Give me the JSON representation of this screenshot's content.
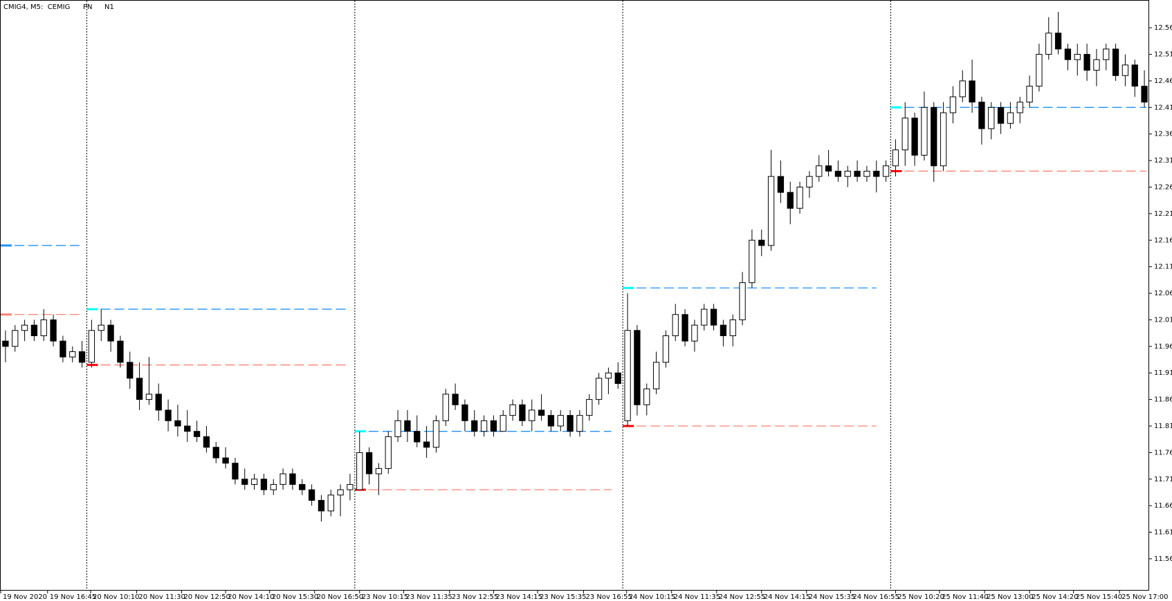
{
  "chart_data": {
    "type": "candlestick",
    "title": "CMIG4, M5:  CEMIG",
    "labels": [
      "PN",
      "N1"
    ],
    "up_color": "#ffffff",
    "down_color": "#000000",
    "outline_color": "#000000",
    "xlim": [
      0,
      120
    ],
    "ylim": [
      11.5,
      12.611
    ],
    "yticks": [
      11.56,
      11.61,
      11.66,
      11.71,
      11.76,
      11.81,
      11.86,
      11.91,
      11.96,
      12.01,
      12.06,
      12.11,
      12.16,
      12.21,
      12.26,
      12.31,
      12.36,
      12.41,
      12.46,
      12.51,
      12.56
    ],
    "xticks": [
      {
        "value": 0,
        "label": "19 Nov 2020"
      },
      {
        "value": 4.9,
        "label": "19 Nov 16:45"
      },
      {
        "value": 9.4,
        "label": "20 Nov 10:10"
      },
      {
        "value": 14.2,
        "label": "20 Nov 11:30"
      },
      {
        "value": 18.9,
        "label": "20 Nov 12:50"
      },
      {
        "value": 23.5,
        "label": "20 Nov 14:10"
      },
      {
        "value": 28.1,
        "label": "20 Nov 15:30"
      },
      {
        "value": 32.8,
        "label": "20 Nov 16:50"
      },
      {
        "value": 37.5,
        "label": "23 Nov 10:15"
      },
      {
        "value": 42.1,
        "label": "23 Nov 11:35"
      },
      {
        "value": 46.9,
        "label": "23 Nov 12:55"
      },
      {
        "value": 51.5,
        "label": "23 Nov 14:15"
      },
      {
        "value": 56.1,
        "label": "23 Nov 15:35"
      },
      {
        "value": 60.9,
        "label": "23 Nov 16:55"
      },
      {
        "value": 65.4,
        "label": "24 Nov 10:15"
      },
      {
        "value": 70.1,
        "label": "24 Nov 11:35"
      },
      {
        "value": 74.8,
        "label": "24 Nov 12:55"
      },
      {
        "value": 79.5,
        "label": "24 Nov 14:15"
      },
      {
        "value": 84.2,
        "label": "24 Nov 15:35"
      },
      {
        "value": 88.8,
        "label": "24 Nov 16:55"
      },
      {
        "value": 93.5,
        "label": "25 Nov 10:20"
      },
      {
        "value": 98.1,
        "label": "25 Nov 11:40"
      },
      {
        "value": 102.8,
        "label": "25 Nov 13:00"
      },
      {
        "value": 107.5,
        "label": "25 Nov 14:20"
      },
      {
        "value": 112.1,
        "label": "25 Nov 15:40"
      },
      {
        "value": 116.9,
        "label": "25 Nov 17:00"
      }
    ],
    "separators": [
      9,
      37,
      65,
      93
    ],
    "levels": [
      {
        "x": [
          0,
          8.5
        ],
        "value": 12.15,
        "color": "#1e90ff",
        "start_color": "#1e90ff"
      },
      {
        "x": [
          0,
          8.5
        ],
        "value": 12.02,
        "color": "#fa8072",
        "start_color": "#fa8072"
      },
      {
        "x": [
          9,
          36.2
        ],
        "value": 12.03,
        "color": "#1e90ff",
        "start_color": "#00ffff"
      },
      {
        "x": [
          9,
          36.2
        ],
        "value": 11.925,
        "color": "#fa8072",
        "start_color": "#ff0000"
      },
      {
        "x": [
          37,
          63.8
        ],
        "value": 11.8,
        "color": "#1e90ff",
        "start_color": "#00ffff"
      },
      {
        "x": [
          37,
          63.8
        ],
        "value": 11.69,
        "color": "#fa8072",
        "start_color": "#ff0000"
      },
      {
        "x": [
          65,
          91.5
        ],
        "value": 12.07,
        "color": "#1e90ff",
        "start_color": "#00ffff"
      },
      {
        "x": [
          65,
          91.5
        ],
        "value": 11.81,
        "color": "#fa8072",
        "start_color": "#ff0000"
      },
      {
        "x": [
          93,
          119.7
        ],
        "value": 12.41,
        "color": "#1e90ff",
        "start_color": "#00ffff"
      },
      {
        "x": [
          93,
          119.7
        ],
        "value": 12.29,
        "color": "#fa8072",
        "start_color": "#ff0000"
      }
    ],
    "candles": [
      [
        11.97,
        11.99,
        11.93,
        11.96
      ],
      [
        11.96,
        12.0,
        11.95,
        11.99
      ],
      [
        11.99,
        12.01,
        11.97,
        12.0
      ],
      [
        12.0,
        12.01,
        11.97,
        11.98
      ],
      [
        11.98,
        12.03,
        11.97,
        12.01
      ],
      [
        12.01,
        12.02,
        11.96,
        11.97
      ],
      [
        11.97,
        11.98,
        11.93,
        11.94
      ],
      [
        11.94,
        11.96,
        11.93,
        11.95
      ],
      [
        11.95,
        11.97,
        11.92,
        11.93
      ],
      [
        11.93,
        12.01,
        11.92,
        11.99
      ],
      [
        11.99,
        12.03,
        11.97,
        12.0
      ],
      [
        12.0,
        12.01,
        11.95,
        11.97
      ],
      [
        11.97,
        11.98,
        11.92,
        11.93
      ],
      [
        11.93,
        11.95,
        11.88,
        11.9
      ],
      [
        11.9,
        11.93,
        11.84,
        11.86
      ],
      [
        11.86,
        11.94,
        11.85,
        11.87
      ],
      [
        11.87,
        11.89,
        11.82,
        11.84
      ],
      [
        11.84,
        11.86,
        11.8,
        11.82
      ],
      [
        11.82,
        11.85,
        11.79,
        11.81
      ],
      [
        11.81,
        11.84,
        11.78,
        11.8
      ],
      [
        11.8,
        11.82,
        11.78,
        11.79
      ],
      [
        11.79,
        11.81,
        11.76,
        11.77
      ],
      [
        11.77,
        11.78,
        11.74,
        11.75
      ],
      [
        11.75,
        11.77,
        11.73,
        11.74
      ],
      [
        11.74,
        11.75,
        11.7,
        11.71
      ],
      [
        11.71,
        11.73,
        11.69,
        11.7
      ],
      [
        11.7,
        11.72,
        11.69,
        11.71
      ],
      [
        11.71,
        11.72,
        11.68,
        11.69
      ],
      [
        11.69,
        11.71,
        11.68,
        11.7
      ],
      [
        11.7,
        11.73,
        11.69,
        11.72
      ],
      [
        11.72,
        11.73,
        11.69,
        11.7
      ],
      [
        11.7,
        11.71,
        11.68,
        11.69
      ],
      [
        11.69,
        11.7,
        11.66,
        11.67
      ],
      [
        11.67,
        11.68,
        11.63,
        11.65
      ],
      [
        11.65,
        11.69,
        11.64,
        11.68
      ],
      [
        11.68,
        11.7,
        11.64,
        11.69
      ],
      [
        11.69,
        11.72,
        11.67,
        11.7
      ],
      [
        11.69,
        11.8,
        11.69,
        11.76
      ],
      [
        11.76,
        11.77,
        11.7,
        11.72
      ],
      [
        11.72,
        11.74,
        11.68,
        11.73
      ],
      [
        11.73,
        11.8,
        11.72,
        11.79
      ],
      [
        11.79,
        11.84,
        11.78,
        11.82
      ],
      [
        11.82,
        11.84,
        11.78,
        11.8
      ],
      [
        11.8,
        11.83,
        11.77,
        11.78
      ],
      [
        11.78,
        11.81,
        11.75,
        11.77
      ],
      [
        11.77,
        11.83,
        11.76,
        11.82
      ],
      [
        11.82,
        11.88,
        11.81,
        11.87
      ],
      [
        11.87,
        11.89,
        11.84,
        11.85
      ],
      [
        11.85,
        11.86,
        11.8,
        11.82
      ],
      [
        11.82,
        11.84,
        11.79,
        11.8
      ],
      [
        11.8,
        11.83,
        11.79,
        11.82
      ],
      [
        11.82,
        11.83,
        11.79,
        11.8
      ],
      [
        11.8,
        11.84,
        11.8,
        11.83
      ],
      [
        11.83,
        11.86,
        11.82,
        11.85
      ],
      [
        11.85,
        11.86,
        11.81,
        11.82
      ],
      [
        11.82,
        11.86,
        11.8,
        11.84
      ],
      [
        11.84,
        11.87,
        11.82,
        11.83
      ],
      [
        11.83,
        11.84,
        11.8,
        11.81
      ],
      [
        11.81,
        11.84,
        11.8,
        11.83
      ],
      [
        11.83,
        11.84,
        11.79,
        11.8
      ],
      [
        11.8,
        11.84,
        11.79,
        11.83
      ],
      [
        11.83,
        11.87,
        11.82,
        11.86
      ],
      [
        11.86,
        11.91,
        11.85,
        11.9
      ],
      [
        11.9,
        11.92,
        11.87,
        11.91
      ],
      [
        11.91,
        11.93,
        11.88,
        11.89
      ],
      [
        11.82,
        12.06,
        11.81,
        11.99
      ],
      [
        11.99,
        12.0,
        11.83,
        11.85
      ],
      [
        11.85,
        11.89,
        11.83,
        11.88
      ],
      [
        11.88,
        11.95,
        11.87,
        11.93
      ],
      [
        11.93,
        11.99,
        11.92,
        11.98
      ],
      [
        11.98,
        12.04,
        11.97,
        12.02
      ],
      [
        12.02,
        12.03,
        11.96,
        11.97
      ],
      [
        11.97,
        12.01,
        11.95,
        12.0
      ],
      [
        12.0,
        12.04,
        11.99,
        12.03
      ],
      [
        12.03,
        12.04,
        11.99,
        12.0
      ],
      [
        12.0,
        12.01,
        11.96,
        11.98
      ],
      [
        11.98,
        12.02,
        11.96,
        12.01
      ],
      [
        12.01,
        12.1,
        12.0,
        12.08
      ],
      [
        12.08,
        12.18,
        12.07,
        12.16
      ],
      [
        12.16,
        12.18,
        12.13,
        12.15
      ],
      [
        12.15,
        12.33,
        12.14,
        12.28
      ],
      [
        12.28,
        12.31,
        12.23,
        12.25
      ],
      [
        12.25,
        12.27,
        12.19,
        12.22
      ],
      [
        12.22,
        12.27,
        12.21,
        12.26
      ],
      [
        12.26,
        12.29,
        12.24,
        12.28
      ],
      [
        12.28,
        12.32,
        12.27,
        12.3
      ],
      [
        12.3,
        12.33,
        12.28,
        12.29
      ],
      [
        12.29,
        12.31,
        12.27,
        12.28
      ],
      [
        12.28,
        12.3,
        12.26,
        12.29
      ],
      [
        12.29,
        12.31,
        12.27,
        12.28
      ],
      [
        12.28,
        12.3,
        12.27,
        12.29
      ],
      [
        12.29,
        12.31,
        12.25,
        12.28
      ],
      [
        12.28,
        12.31,
        12.27,
        12.3
      ],
      [
        12.3,
        12.35,
        12.28,
        12.33
      ],
      [
        12.33,
        12.42,
        12.3,
        12.39
      ],
      [
        12.39,
        12.4,
        12.3,
        12.32
      ],
      [
        12.32,
        12.44,
        12.31,
        12.41
      ],
      [
        12.41,
        12.42,
        12.27,
        12.3
      ],
      [
        12.3,
        12.42,
        12.29,
        12.4
      ],
      [
        12.4,
        12.45,
        12.38,
        12.43
      ],
      [
        12.43,
        12.48,
        12.42,
        12.46
      ],
      [
        12.46,
        12.5,
        12.4,
        12.42
      ],
      [
        12.42,
        12.43,
        12.34,
        12.37
      ],
      [
        12.37,
        12.42,
        12.35,
        12.41
      ],
      [
        12.41,
        12.42,
        12.36,
        12.38
      ],
      [
        12.38,
        12.42,
        12.37,
        12.4
      ],
      [
        12.4,
        12.43,
        12.38,
        12.42
      ],
      [
        12.42,
        12.47,
        12.41,
        12.45
      ],
      [
        12.45,
        12.53,
        12.44,
        12.51
      ],
      [
        12.51,
        12.58,
        12.5,
        12.55
      ],
      [
        12.55,
        12.59,
        12.51,
        12.52
      ],
      [
        12.52,
        12.53,
        12.48,
        12.5
      ],
      [
        12.5,
        12.53,
        12.47,
        12.51
      ],
      [
        12.51,
        12.53,
        12.46,
        12.48
      ],
      [
        12.48,
        12.52,
        12.45,
        12.5
      ],
      [
        12.5,
        12.53,
        12.48,
        12.52
      ],
      [
        12.52,
        12.53,
        12.46,
        12.47
      ],
      [
        12.47,
        12.51,
        12.45,
        12.49
      ],
      [
        12.49,
        12.5,
        12.43,
        12.45
      ],
      [
        12.45,
        12.48,
        12.41,
        12.42
      ]
    ]
  }
}
